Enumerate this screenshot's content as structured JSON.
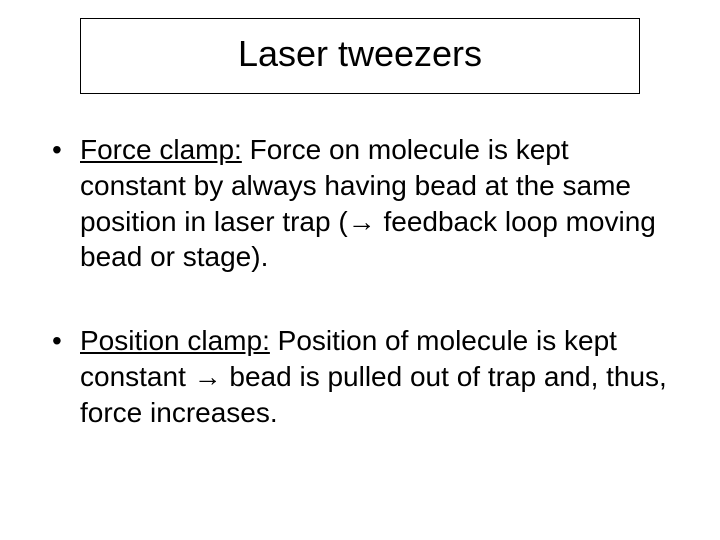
{
  "title": "Laser tweezers",
  "bullets": [
    {
      "term": "Force clamp:",
      "text_after": "  Force on molecule is kept constant by always having bead at the same position in laser trap (→ feedback loop moving bead or stage)."
    },
    {
      "term": "Position clamp:",
      "text_after": "  Position of molecule is kept constant → bead is pulled out of trap and, thus, force increases."
    }
  ],
  "colors": {
    "background": "#ffffff",
    "text": "#000000",
    "border": "#000000"
  },
  "typography": {
    "title_fontsize": 36,
    "body_fontsize": 28,
    "font_family": "Arial"
  }
}
